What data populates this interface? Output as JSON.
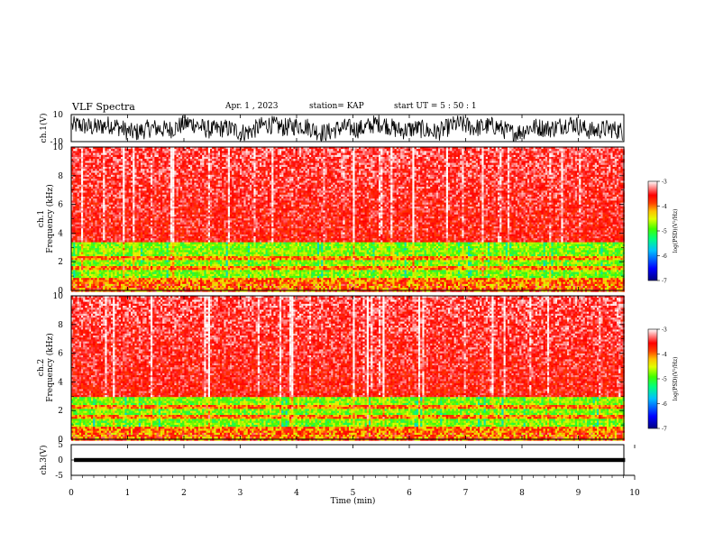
{
  "header": {
    "title": "VLF Spectra",
    "date": "Apr. 1 , 2023",
    "station": "station= KAP",
    "start": "start UT = 5 : 50 : 1"
  },
  "chart_data": [
    {
      "type": "line",
      "panel": "ch1-waveform",
      "ylabel": "ch.1(V)",
      "ylim": [
        -10,
        10
      ],
      "yticks": [
        "10",
        "-10"
      ],
      "xlim": [
        0,
        10
      ],
      "note_visible": "dense waveform filling most of the range"
    },
    {
      "type": "heatmap",
      "panel": "ch1-spectrogram",
      "ylabel": "ch.1\nFrequency (kHz)",
      "ylabel_line1": "ch.1",
      "ylabel_line2": "Frequency (kHz)",
      "ylim": [
        0,
        10
      ],
      "yticks": [
        "0",
        "2",
        "4",
        "6",
        "8",
        "10"
      ],
      "xlim": [
        0,
        9.83
      ],
      "bands": [
        {
          "from": 0,
          "to": 0.5,
          "level": "mixed"
        },
        {
          "from": 0.5,
          "to": 1.0,
          "level": -4.0
        },
        {
          "from": 1.0,
          "to": 3.4,
          "level": -4.8
        },
        {
          "from": 3.4,
          "to": 10,
          "level": -3.6
        }
      ],
      "colorbar": {
        "label": "log(PSD)(V²/Hz)",
        "ticks": [
          "-3",
          "-4",
          "-5",
          "-6",
          "-7"
        ],
        "range": [
          -7,
          -3
        ]
      }
    },
    {
      "type": "heatmap",
      "panel": "ch2-spectrogram",
      "ylabel_line1": "ch.2",
      "ylabel_line2": "Frequency (kHz)",
      "ylim": [
        0,
        10
      ],
      "yticks": [
        "0",
        "2",
        "4",
        "6",
        "8",
        "10"
      ],
      "xlim": [
        0,
        9.83
      ],
      "bands": [
        {
          "from": 0,
          "to": 0.5,
          "level": "mixed"
        },
        {
          "from": 0.5,
          "to": 1.0,
          "level": -4.2
        },
        {
          "from": 1.0,
          "to": 3.0,
          "level": -5.0
        },
        {
          "from": 3.0,
          "to": 10,
          "level": -3.7
        }
      ],
      "colorbar": {
        "label": "log(PSD)(V²/Hz)",
        "ticks": [
          "-3",
          "-4",
          "-5",
          "-6",
          "-7"
        ],
        "range": [
          -7,
          -3
        ]
      }
    },
    {
      "type": "line",
      "panel": "ch3-waveform",
      "ylabel": "ch.3(V)",
      "ylim": [
        -5,
        5
      ],
      "yticks": [
        "5",
        "0",
        "-5"
      ],
      "level": 0,
      "xlim": [
        0,
        9.83
      ],
      "xlabel": "Time (min)",
      "xticks": [
        "0",
        "1",
        "2",
        "3",
        "4",
        "5",
        "6",
        "7",
        "8",
        "9",
        "10"
      ]
    }
  ],
  "colors": {
    "scale": [
      "#0000a0",
      "#0000ff",
      "#00a0ff",
      "#00ffb0",
      "#30ff30",
      "#c0ff00",
      "#ffff00",
      "#ffa000",
      "#ff3020",
      "#ff0000",
      "#ffc0c0",
      "#ffffff"
    ]
  }
}
